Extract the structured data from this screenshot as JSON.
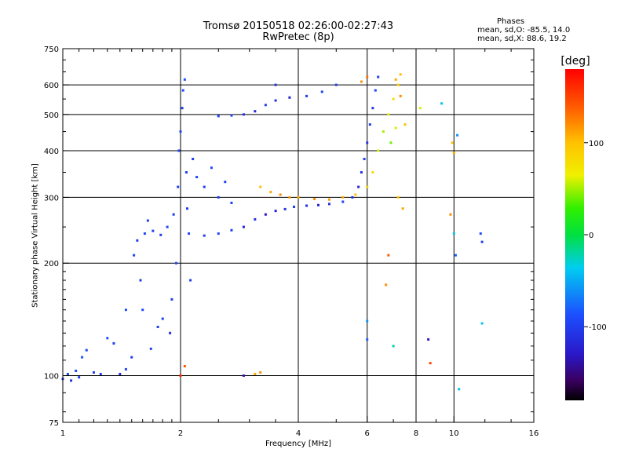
{
  "chart_data": {
    "type": "scatter",
    "title": "Tromsø 20150518 02:26:00-02:27:43",
    "subtitle": "RwPretec (8p)",
    "xlabel": "Frequency [MHz]",
    "ylabel": "Stationary phase Virtual Height [km]",
    "x_scale": "log",
    "y_scale": "log",
    "xlim": [
      1,
      16
    ],
    "ylim": [
      75,
      750
    ],
    "x_ticks": [
      1,
      2,
      4,
      6,
      8,
      10,
      16
    ],
    "x_tick_labels": [
      "1",
      "2",
      "4",
      "6",
      "8",
      "10",
      "16"
    ],
    "y_ticks": [
      75,
      100,
      200,
      300,
      400,
      500,
      600,
      750
    ],
    "y_tick_labels": [
      "75",
      "100",
      "200",
      "300",
      "400",
      "500",
      "600",
      "750"
    ],
    "grid": true,
    "stats_header": "Phases",
    "stats": [
      "mean, sd,O: -85.5, 14.0",
      "mean, sd,X:  88.6, 19.2"
    ],
    "colorbar": {
      "label": "[deg]",
      "min": -180,
      "max": 180,
      "ticks": [
        100,
        0,
        -100
      ],
      "tick_labels": [
        "100",
        "0",
        "-100"
      ]
    },
    "series": [
      {
        "values": [
          {
            "x": 1.0,
            "y": 98,
            "phase": -100
          },
          {
            "x": 1.03,
            "y": 101,
            "phase": -90
          },
          {
            "x": 1.05,
            "y": 97,
            "phase": -110
          },
          {
            "x": 1.08,
            "y": 103,
            "phase": -95
          },
          {
            "x": 1.1,
            "y": 99,
            "phase": -100
          },
          {
            "x": 1.12,
            "y": 112,
            "phase": -85
          },
          {
            "x": 1.15,
            "y": 117,
            "phase": -95
          },
          {
            "x": 1.2,
            "y": 102,
            "phase": -100
          },
          {
            "x": 1.25,
            "y": 101,
            "phase": -100
          },
          {
            "x": 1.3,
            "y": 126,
            "phase": -90
          },
          {
            "x": 1.35,
            "y": 122,
            "phase": -100
          },
          {
            "x": 1.4,
            "y": 101,
            "phase": -110
          },
          {
            "x": 1.45,
            "y": 104,
            "phase": -95
          },
          {
            "x": 1.45,
            "y": 150,
            "phase": -90
          },
          {
            "x": 1.5,
            "y": 112,
            "phase": -100
          },
          {
            "x": 1.52,
            "y": 210,
            "phase": -95
          },
          {
            "x": 1.55,
            "y": 230,
            "phase": -100
          },
          {
            "x": 1.58,
            "y": 180,
            "phase": -100
          },
          {
            "x": 1.6,
            "y": 150,
            "phase": -90
          },
          {
            "x": 1.62,
            "y": 240,
            "phase": -95
          },
          {
            "x": 1.65,
            "y": 260,
            "phase": -100
          },
          {
            "x": 1.68,
            "y": 118,
            "phase": -100
          },
          {
            "x": 1.7,
            "y": 244,
            "phase": -100
          },
          {
            "x": 1.75,
            "y": 135,
            "phase": -95
          },
          {
            "x": 1.78,
            "y": 238,
            "phase": -100
          },
          {
            "x": 1.8,
            "y": 142,
            "phase": -100
          },
          {
            "x": 1.85,
            "y": 250,
            "phase": -95
          },
          {
            "x": 1.88,
            "y": 130,
            "phase": -110
          },
          {
            "x": 1.9,
            "y": 160,
            "phase": -100
          },
          {
            "x": 1.92,
            "y": 270,
            "phase": -100
          },
          {
            "x": 1.95,
            "y": 200,
            "phase": -95
          },
          {
            "x": 1.97,
            "y": 320,
            "phase": -100
          },
          {
            "x": 1.98,
            "y": 400,
            "phase": -100
          },
          {
            "x": 2.0,
            "y": 450,
            "phase": -95
          },
          {
            "x": 2.02,
            "y": 520,
            "phase": -100
          },
          {
            "x": 2.03,
            "y": 580,
            "phase": -90
          },
          {
            "x": 2.05,
            "y": 620,
            "phase": -85
          },
          {
            "x": 2.07,
            "y": 350,
            "phase": -100
          },
          {
            "x": 2.08,
            "y": 280,
            "phase": -100
          },
          {
            "x": 2.1,
            "y": 240,
            "phase": -95
          },
          {
            "x": 2.12,
            "y": 180,
            "phase": -100
          },
          {
            "x": 2.15,
            "y": 380,
            "phase": -100
          },
          {
            "x": 2.2,
            "y": 340,
            "phase": -95
          },
          {
            "x": 2.3,
            "y": 320,
            "phase": -100
          },
          {
            "x": 2.4,
            "y": 360,
            "phase": -90
          },
          {
            "x": 2.5,
            "y": 300,
            "phase": -100
          },
          {
            "x": 2.6,
            "y": 330,
            "phase": -95
          },
          {
            "x": 2.7,
            "y": 290,
            "phase": -100
          },
          {
            "x": 2.3,
            "y": 237,
            "phase": -100
          },
          {
            "x": 2.5,
            "y": 240,
            "phase": -95
          },
          {
            "x": 2.7,
            "y": 245,
            "phase": -100
          },
          {
            "x": 2.9,
            "y": 250,
            "phase": -120
          },
          {
            "x": 3.1,
            "y": 262,
            "phase": -110
          },
          {
            "x": 3.3,
            "y": 270,
            "phase": -130
          },
          {
            "x": 3.5,
            "y": 276,
            "phase": -120
          },
          {
            "x": 3.7,
            "y": 279,
            "phase": -110
          },
          {
            "x": 3.9,
            "y": 283,
            "phase": -100
          },
          {
            "x": 4.2,
            "y": 285,
            "phase": -110
          },
          {
            "x": 4.5,
            "y": 286,
            "phase": -120
          },
          {
            "x": 4.8,
            "y": 288,
            "phase": -110
          },
          {
            "x": 5.2,
            "y": 292,
            "phase": -100
          },
          {
            "x": 5.5,
            "y": 300,
            "phase": -110
          },
          {
            "x": 5.7,
            "y": 320,
            "phase": -120
          },
          {
            "x": 5.8,
            "y": 350,
            "phase": -110
          },
          {
            "x": 5.9,
            "y": 380,
            "phase": -100
          },
          {
            "x": 6.0,
            "y": 420,
            "phase": -110
          },
          {
            "x": 6.1,
            "y": 470,
            "phase": -100
          },
          {
            "x": 6.2,
            "y": 520,
            "phase": -110
          },
          {
            "x": 6.3,
            "y": 580,
            "phase": -90
          },
          {
            "x": 6.4,
            "y": 630,
            "phase": -100
          },
          {
            "x": 2.5,
            "y": 495,
            "phase": -95
          },
          {
            "x": 2.7,
            "y": 497,
            "phase": -100
          },
          {
            "x": 2.9,
            "y": 500,
            "phase": -110
          },
          {
            "x": 3.1,
            "y": 510,
            "phase": -120
          },
          {
            "x": 3.3,
            "y": 530,
            "phase": -100
          },
          {
            "x": 3.5,
            "y": 545,
            "phase": -110
          },
          {
            "x": 3.8,
            "y": 555,
            "phase": -120
          },
          {
            "x": 4.2,
            "y": 560,
            "phase": -100
          },
          {
            "x": 4.6,
            "y": 575,
            "phase": -95
          },
          {
            "x": 5.0,
            "y": 600,
            "phase": -100
          },
          {
            "x": 3.5,
            "y": 600,
            "phase": -110
          },
          {
            "x": 3.2,
            "y": 320,
            "phase": 100
          },
          {
            "x": 3.4,
            "y": 310,
            "phase": 110
          },
          {
            "x": 3.6,
            "y": 305,
            "phase": 120
          },
          {
            "x": 3.8,
            "y": 300,
            "phase": 115
          },
          {
            "x": 4.0,
            "y": 300,
            "phase": 110
          },
          {
            "x": 4.4,
            "y": 297,
            "phase": 120
          },
          {
            "x": 4.8,
            "y": 296,
            "phase": 115
          },
          {
            "x": 5.2,
            "y": 300,
            "phase": 110
          },
          {
            "x": 5.6,
            "y": 305,
            "phase": 100
          },
          {
            "x": 6.0,
            "y": 320,
            "phase": 90
          },
          {
            "x": 6.2,
            "y": 350,
            "phase": 80
          },
          {
            "x": 6.4,
            "y": 400,
            "phase": 60
          },
          {
            "x": 6.6,
            "y": 450,
            "phase": 50
          },
          {
            "x": 6.8,
            "y": 500,
            "phase": 70
          },
          {
            "x": 7.0,
            "y": 550,
            "phase": 80
          },
          {
            "x": 7.2,
            "y": 600,
            "phase": 90
          },
          {
            "x": 7.3,
            "y": 640,
            "phase": 100
          },
          {
            "x": 6.9,
            "y": 420,
            "phase": 40
          },
          {
            "x": 7.1,
            "y": 460,
            "phase": 60
          },
          {
            "x": 5.8,
            "y": 612,
            "phase": 120
          },
          {
            "x": 6.0,
            "y": 630,
            "phase": 130
          },
          {
            "x": 3.1,
            "y": 101,
            "phase": 110
          },
          {
            "x": 3.2,
            "y": 102,
            "phase": 120
          },
          {
            "x": 2.9,
            "y": 100,
            "phase": -130
          },
          {
            "x": 7.1,
            "y": 620,
            "phase": 110
          },
          {
            "x": 7.3,
            "y": 560,
            "phase": 120
          },
          {
            "x": 7.5,
            "y": 470,
            "phase": 100
          },
          {
            "x": 7.2,
            "y": 300,
            "phase": 100
          },
          {
            "x": 6.7,
            "y": 175,
            "phase": 120
          },
          {
            "x": 6.8,
            "y": 210,
            "phase": 140
          },
          {
            "x": 7.4,
            "y": 280,
            "phase": 110
          },
          {
            "x": 8.6,
            "y": 125,
            "phase": -130
          },
          {
            "x": 8.7,
            "y": 108,
            "phase": 150
          },
          {
            "x": 9.9,
            "y": 420,
            "phase": 100
          },
          {
            "x": 10.0,
            "y": 395,
            "phase": 110
          },
          {
            "x": 9.8,
            "y": 270,
            "phase": 120
          },
          {
            "x": 10.0,
            "y": 240,
            "phase": -40
          },
          {
            "x": 10.1,
            "y": 210,
            "phase": -80
          },
          {
            "x": 10.2,
            "y": 440,
            "phase": -60
          },
          {
            "x": 10.3,
            "y": 92,
            "phase": -40
          },
          {
            "x": 11.7,
            "y": 240,
            "phase": -90
          },
          {
            "x": 11.8,
            "y": 228,
            "phase": -100
          },
          {
            "x": 11.8,
            "y": 138,
            "phase": -40
          },
          {
            "x": 9.3,
            "y": 535,
            "phase": -40
          },
          {
            "x": 6.0,
            "y": 140,
            "phase": -60
          },
          {
            "x": 6.0,
            "y": 125,
            "phase": -80
          },
          {
            "x": 7.0,
            "y": 120,
            "phase": -20
          },
          {
            "x": 2.0,
            "y": 100,
            "phase": 160
          },
          {
            "x": 2.05,
            "y": 106,
            "phase": 140
          },
          {
            "x": 8.2,
            "y": 520,
            "phase": 60
          }
        ]
      }
    ]
  }
}
